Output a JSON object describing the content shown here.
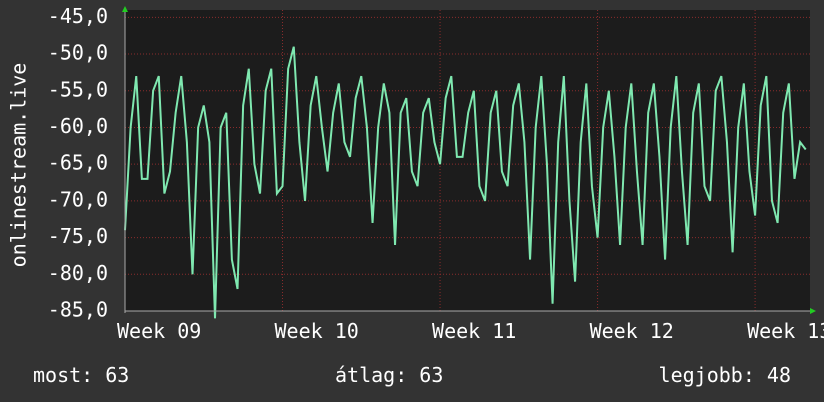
{
  "chart_data": {
    "type": "line",
    "y_label": "onlinestream.live",
    "xlim": [
      0,
      30.44
    ],
    "xticks": [
      {
        "value": 0,
        "label": "Week 09"
      },
      {
        "value": 7,
        "label": "Week 10"
      },
      {
        "value": 14,
        "label": "Week 11"
      },
      {
        "value": 21,
        "label": "Week 12"
      },
      {
        "value": 28,
        "label": "Week 13"
      }
    ],
    "ylim": [
      -85,
      -44
    ],
    "yticks": [
      {
        "value": -45,
        "label": "-45,0"
      },
      {
        "value": -50,
        "label": "-50,0"
      },
      {
        "value": -55,
        "label": "-55,0"
      },
      {
        "value": -60,
        "label": "-60,0"
      },
      {
        "value": -65,
        "label": "-65,0"
      },
      {
        "value": -70,
        "label": "-70,0"
      },
      {
        "value": -75,
        "label": "-75,0"
      },
      {
        "value": -80,
        "label": "-80,0"
      },
      {
        "value": -85,
        "label": "-85,0"
      }
    ],
    "grid": true,
    "x": [
      0,
      0.25,
      0.5,
      0.75,
      1,
      1.25,
      1.5,
      1.75,
      2,
      2.25,
      2.5,
      2.75,
      3,
      3.25,
      3.5,
      3.75,
      4,
      4.25,
      4.5,
      4.75,
      5,
      5.25,
      5.5,
      5.75,
      6,
      6.25,
      6.5,
      6.75,
      7,
      7.25,
      7.5,
      7.75,
      8,
      8.25,
      8.5,
      8.75,
      9,
      9.25,
      9.5,
      9.75,
      10,
      10.25,
      10.5,
      10.75,
      11,
      11.25,
      11.5,
      11.75,
      12,
      12.25,
      12.5,
      12.75,
      13,
      13.25,
      13.5,
      13.75,
      14,
      14.25,
      14.5,
      14.75,
      15,
      15.25,
      15.5,
      15.75,
      16,
      16.25,
      16.5,
      16.75,
      17,
      17.25,
      17.5,
      17.75,
      18,
      18.25,
      18.5,
      18.75,
      19,
      19.25,
      19.5,
      19.75,
      20,
      20.25,
      20.5,
      20.75,
      21,
      21.25,
      21.5,
      21.75,
      22,
      22.25,
      22.5,
      22.75,
      23,
      23.25,
      23.5,
      23.75,
      24,
      24.25,
      24.5,
      24.75,
      25,
      25.25,
      25.5,
      25.75,
      26,
      26.25,
      26.5,
      26.75,
      27,
      27.25,
      27.5,
      27.75,
      28,
      28.25,
      28.5,
      28.75,
      29,
      29.25,
      29.5,
      29.75,
      30,
      30.25
    ],
    "series": [
      {
        "name": "onlinestream.live",
        "color": "#7fe8b0",
        "values": [
          -74,
          -60,
          -53,
          -67,
          -67,
          -55,
          -53,
          -69,
          -66,
          -58,
          -53,
          -62,
          -80,
          -60,
          -57,
          -62,
          -86,
          -60,
          -58,
          -78,
          -82,
          -57,
          -52,
          -65,
          -69,
          -55,
          -52,
          -69,
          -68,
          -52,
          -49,
          -62,
          -70,
          -57,
          -53,
          -60,
          -66,
          -58,
          -54,
          -62,
          -64,
          -56,
          -53,
          -60,
          -73,
          -60,
          -54,
          -58,
          -76,
          -58,
          -56,
          -66,
          -68,
          -58,
          -56,
          -62,
          -65,
          -56,
          -53,
          -64,
          -64,
          -58,
          -55,
          -68,
          -70,
          -58,
          -55,
          -66,
          -68,
          -57,
          -54,
          -62,
          -78,
          -60,
          -53,
          -65,
          -84,
          -62,
          -53,
          -70,
          -81,
          -62,
          -54,
          -68,
          -75,
          -60,
          -55,
          -64,
          -76,
          -60,
          -54,
          -66,
          -76,
          -58,
          -54,
          -64,
          -78,
          -60,
          -53,
          -66,
          -76,
          -58,
          -54,
          -68,
          -70,
          -55,
          -53,
          -62,
          -77,
          -60,
          -54,
          -66,
          -72,
          -57,
          -53,
          -70,
          -73,
          -58,
          -54,
          -67,
          -62,
          -63
        ]
      }
    ],
    "footer": [
      "most: 63",
      "átlag: 63",
      "legjobb: 48"
    ]
  }
}
